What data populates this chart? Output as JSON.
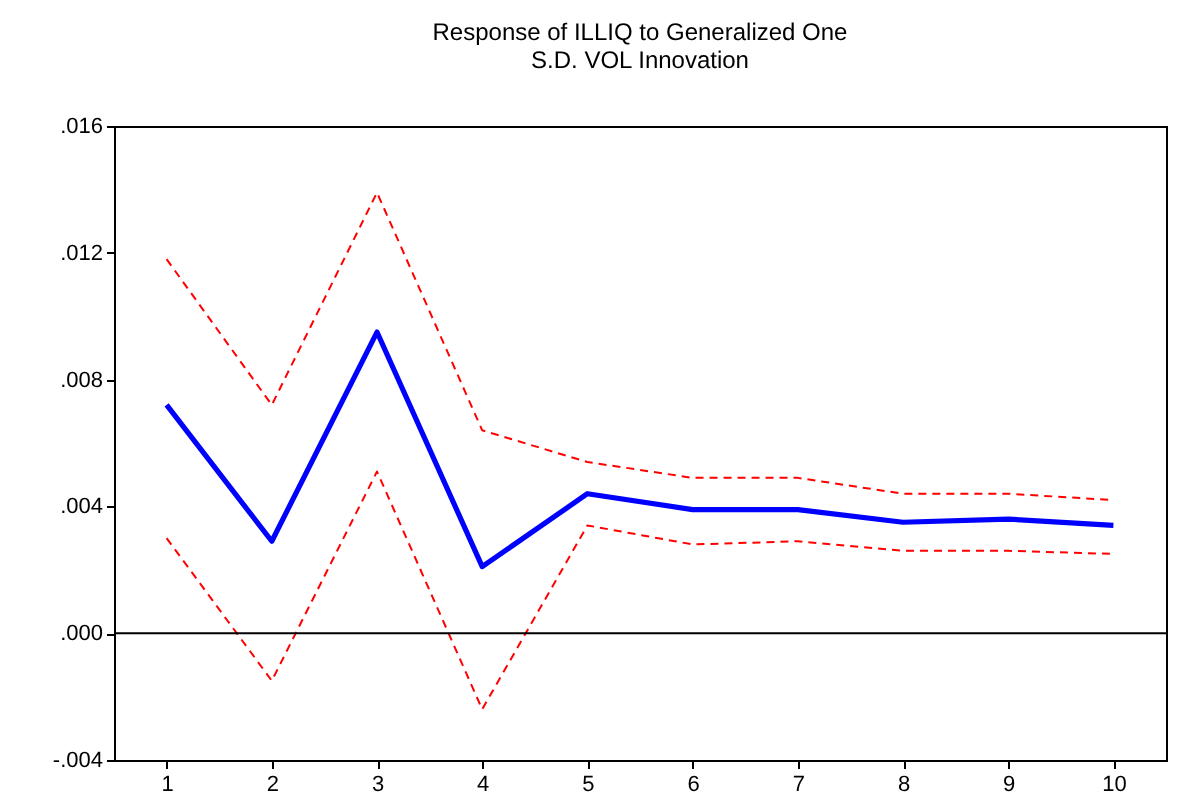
{
  "chart_data": {
    "type": "line",
    "title": "Response of ILLIQ to Generalized One\nS.D. VOL Innovation",
    "categories": [
      "1",
      "2",
      "3",
      "4",
      "5",
      "6",
      "7",
      "8",
      "9",
      "10"
    ],
    "ylim": [
      -0.004,
      0.016
    ],
    "yticks": [
      {
        "value": -0.004,
        "label": "-.004"
      },
      {
        "value": 0,
        "label": ".000"
      },
      {
        "value": 0.004,
        "label": ".004"
      },
      {
        "value": 0.008,
        "label": ".008"
      },
      {
        "value": 0.012,
        "label": ".012"
      },
      {
        "value": 0.016,
        "label": ".016"
      }
    ],
    "grid": false,
    "marker": "none",
    "ref_lines": [
      {
        "axis": "y",
        "value": 0,
        "color": "#000000"
      }
    ],
    "series": [
      {
        "color": "#ff0000",
        "line_style": "dashed",
        "values": [
          0.0118,
          0.0072,
          0.0139,
          0.0064,
          0.0054,
          0.0049,
          0.0049,
          0.0044,
          0.0044,
          0.0042
        ]
      },
      {
        "color": "#0000ff",
        "line_style": "solid",
        "values": [
          0.0072,
          0.0029,
          0.0095,
          0.0021,
          0.0044,
          0.0039,
          0.0039,
          0.0035,
          0.0036,
          0.0034
        ]
      },
      {
        "color": "#ff0000",
        "line_style": "dashed",
        "values": [
          0.003,
          -0.0015,
          0.0051,
          -0.0024,
          0.0034,
          0.0028,
          0.0029,
          0.0026,
          0.0026,
          0.0025
        ]
      }
    ]
  }
}
